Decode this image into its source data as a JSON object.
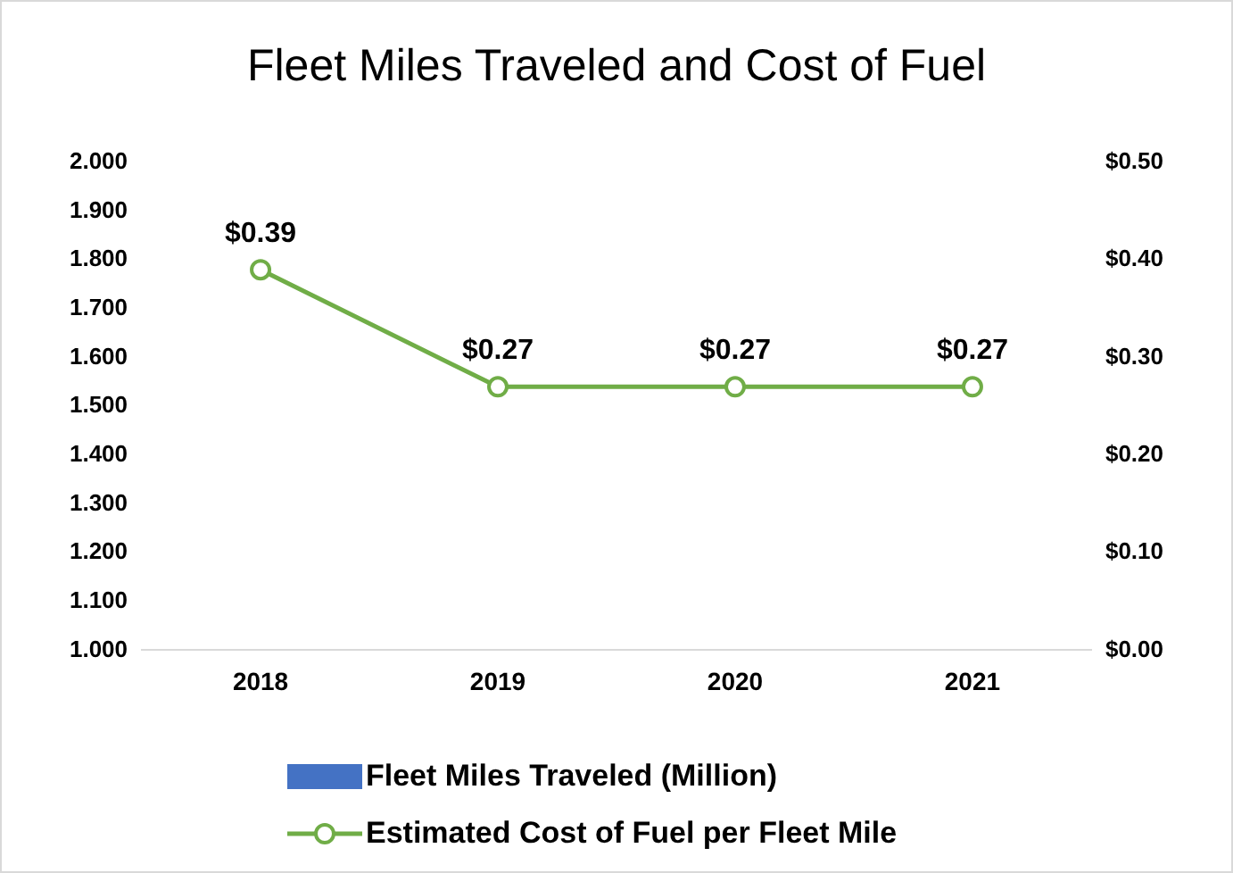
{
  "chart_data": {
    "type": "bar",
    "title": "Fleet Miles Traveled and Cost of Fuel",
    "categories": [
      "2018",
      "2019",
      "2020",
      "2021"
    ],
    "series": [
      {
        "name": "Fleet Miles Traveled (Million)",
        "color": "#4472c4",
        "values": [
          null,
          null,
          null,
          null
        ]
      },
      {
        "name": "Estimated Cost of Fuel per Fleet Mile",
        "type": "line",
        "axis": "y2",
        "color": "#70ad47",
        "values": [
          0.39,
          0.27,
          0.27,
          0.27
        ],
        "value_labels": [
          "$0.39",
          "$0.27",
          "$0.27",
          "$0.27"
        ]
      }
    ],
    "ylim": [
      1.0,
      2.0
    ],
    "yticks": [
      {
        "value": 1.0,
        "label": "1.000"
      },
      {
        "value": 1.1,
        "label": "1.100"
      },
      {
        "value": 1.2,
        "label": "1.200"
      },
      {
        "value": 1.3,
        "label": "1.300"
      },
      {
        "value": 1.4,
        "label": "1.400"
      },
      {
        "value": 1.5,
        "label": "1.500"
      },
      {
        "value": 1.6,
        "label": "1.600"
      },
      {
        "value": 1.7,
        "label": "1.700"
      },
      {
        "value": 1.8,
        "label": "1.800"
      },
      {
        "value": 1.9,
        "label": "1.900"
      },
      {
        "value": 2.0,
        "label": "2.000"
      }
    ],
    "y2lim": [
      0,
      0.5
    ],
    "y2ticks": [
      {
        "value": 0,
        "label": "$0.00"
      },
      {
        "value": 0.1,
        "label": "$0.10"
      },
      {
        "value": 0.2,
        "label": "$0.20"
      },
      {
        "value": 0.3,
        "label": "$0.30"
      },
      {
        "value": 0.4,
        "label": "$0.40"
      },
      {
        "value": 0.5,
        "label": "$0.50"
      }
    ],
    "grid": false,
    "legend": "bottom",
    "marker": "circle",
    "line_style": "solid"
  }
}
